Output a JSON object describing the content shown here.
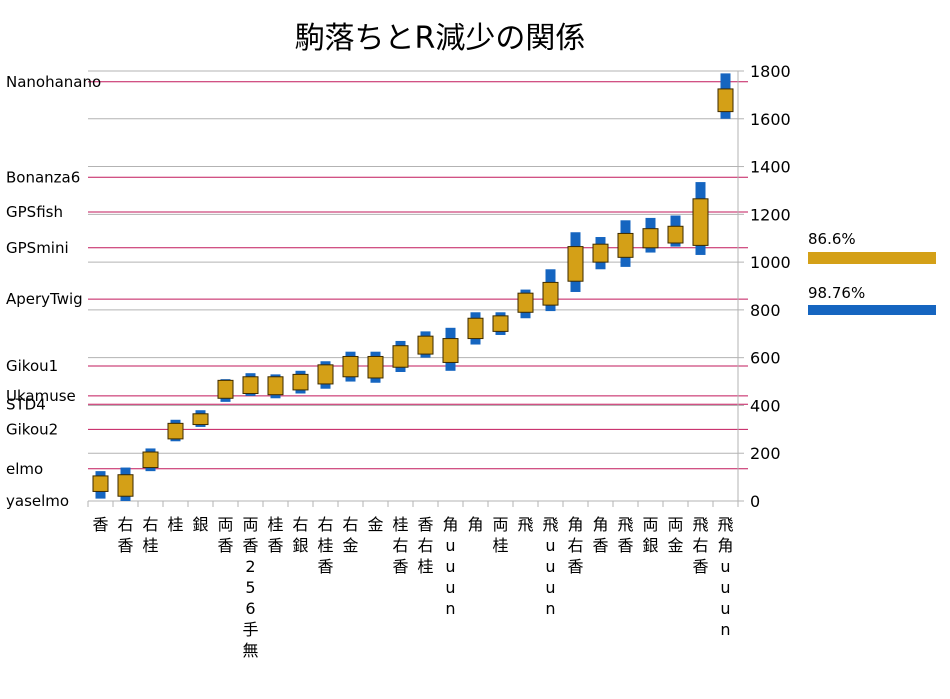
{
  "chart_data": {
    "type": "bar",
    "title": "駒落ちとR減少の関係",
    "ylim": [
      0,
      1800
    ],
    "yticks": [
      "0",
      "200",
      "400",
      "600",
      "800",
      "1000",
      "1200",
      "1400",
      "1600",
      "1800"
    ],
    "grid": true,
    "legend_position": "right",
    "categories": [
      "香",
      "右香",
      "右桂",
      "桂",
      "銀",
      "両香",
      "両香256手無",
      "桂香",
      "右銀",
      "右桂香",
      "右金",
      "金",
      "桂右香",
      "香右桂",
      "角uuun",
      "角",
      "両桂",
      "飛",
      "飛uuun",
      "角右香",
      "角香",
      "飛香",
      "両銀",
      "両金",
      "飛右香",
      "飛角uuun"
    ],
    "series": [
      {
        "name": "86.6%",
        "color": "#d4a017",
        "low": [
          40,
          20,
          140,
          260,
          320,
          430,
          450,
          445,
          465,
          490,
          520,
          515,
          560,
          615,
          580,
          680,
          710,
          790,
          820,
          920,
          1000,
          1020,
          1060,
          1080,
          1070,
          1630
        ],
        "high": [
          105,
          110,
          205,
          325,
          365,
          505,
          520,
          520,
          530,
          570,
          605,
          605,
          650,
          690,
          680,
          765,
          775,
          870,
          915,
          1065,
          1075,
          1120,
          1140,
          1150,
          1265,
          1725
        ]
      },
      {
        "name": "98.76%",
        "color": "#1565c0",
        "low": [
          10,
          0,
          125,
          250,
          310,
          415,
          440,
          430,
          450,
          470,
          500,
          495,
          540,
          600,
          545,
          655,
          695,
          765,
          795,
          875,
          970,
          980,
          1040,
          1065,
          1030,
          1600
        ],
        "high": [
          125,
          140,
          220,
          340,
          380,
          510,
          535,
          530,
          545,
          585,
          625,
          625,
          670,
          710,
          725,
          790,
          790,
          885,
          970,
          1125,
          1105,
          1175,
          1185,
          1195,
          1335,
          1790
        ]
      }
    ],
    "reference_lines": [
      {
        "label": "Nanohanano",
        "value": 1755
      },
      {
        "label": "Bonanza6",
        "value": 1355
      },
      {
        "label": "GPSfish",
        "value": 1210
      },
      {
        "label": "GPSmini",
        "value": 1060
      },
      {
        "label": "AperyTwig",
        "value": 845
      },
      {
        "label": "Gikou1",
        "value": 565
      },
      {
        "label": "Ukamuse",
        "value": 440
      },
      {
        "label": "STD4",
        "value": 405
      },
      {
        "label": "Gikou2",
        "value": 300
      },
      {
        "label": "elmo",
        "value": 135
      },
      {
        "label": "yaselmo",
        "value": 0
      }
    ]
  }
}
